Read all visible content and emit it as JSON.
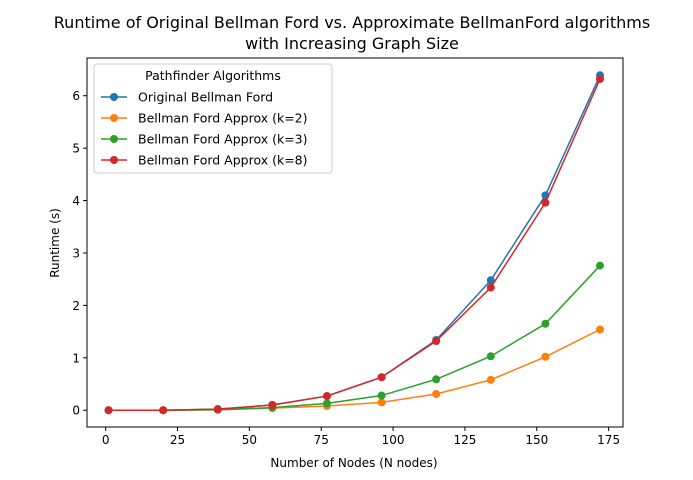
{
  "chart_data": {
    "type": "line",
    "title_line1": "Runtime of Original Bellman Ford vs. Approximate BellmanFord algorithms",
    "title_line2": "with Increasing Graph Size",
    "xlabel": "Number of Nodes (N nodes)",
    "ylabel": "Runtime (s)",
    "xlim": [
      -6.5,
      180
    ],
    "ylim": [
      -0.32,
      6.72
    ],
    "xticks": [
      0,
      25,
      50,
      75,
      100,
      125,
      150,
      175
    ],
    "yticks": [
      0,
      1,
      2,
      3,
      4,
      5,
      6
    ],
    "grid": false,
    "legend": {
      "title": "Pathfinder Algorithms",
      "placement": "upper-left"
    },
    "x": [
      1,
      20,
      39,
      58,
      77,
      96,
      115,
      134,
      153,
      172
    ],
    "series": [
      {
        "name": "Original Bellman Ford",
        "color": "#1f77b4",
        "values": [
          0.0,
          0.0,
          0.02,
          0.1,
          0.27,
          0.63,
          1.34,
          2.48,
          4.1,
          6.39
        ]
      },
      {
        "name": "Bellman Ford Approx (k=2)",
        "color": "#ff7f0e",
        "values": [
          0.0,
          0.0,
          0.01,
          0.04,
          0.08,
          0.15,
          0.31,
          0.58,
          1.02,
          1.54
        ]
      },
      {
        "name": "Bellman Ford Approx (k=3)",
        "color": "#2ca02c",
        "values": [
          0.0,
          0.0,
          0.01,
          0.05,
          0.13,
          0.28,
          0.59,
          1.03,
          1.65,
          2.76
        ]
      },
      {
        "name": "Bellman Ford Approx (k=8)",
        "color": "#d62728",
        "values": [
          0.0,
          0.0,
          0.02,
          0.1,
          0.27,
          0.63,
          1.32,
          2.34,
          3.96,
          6.32
        ]
      }
    ]
  }
}
